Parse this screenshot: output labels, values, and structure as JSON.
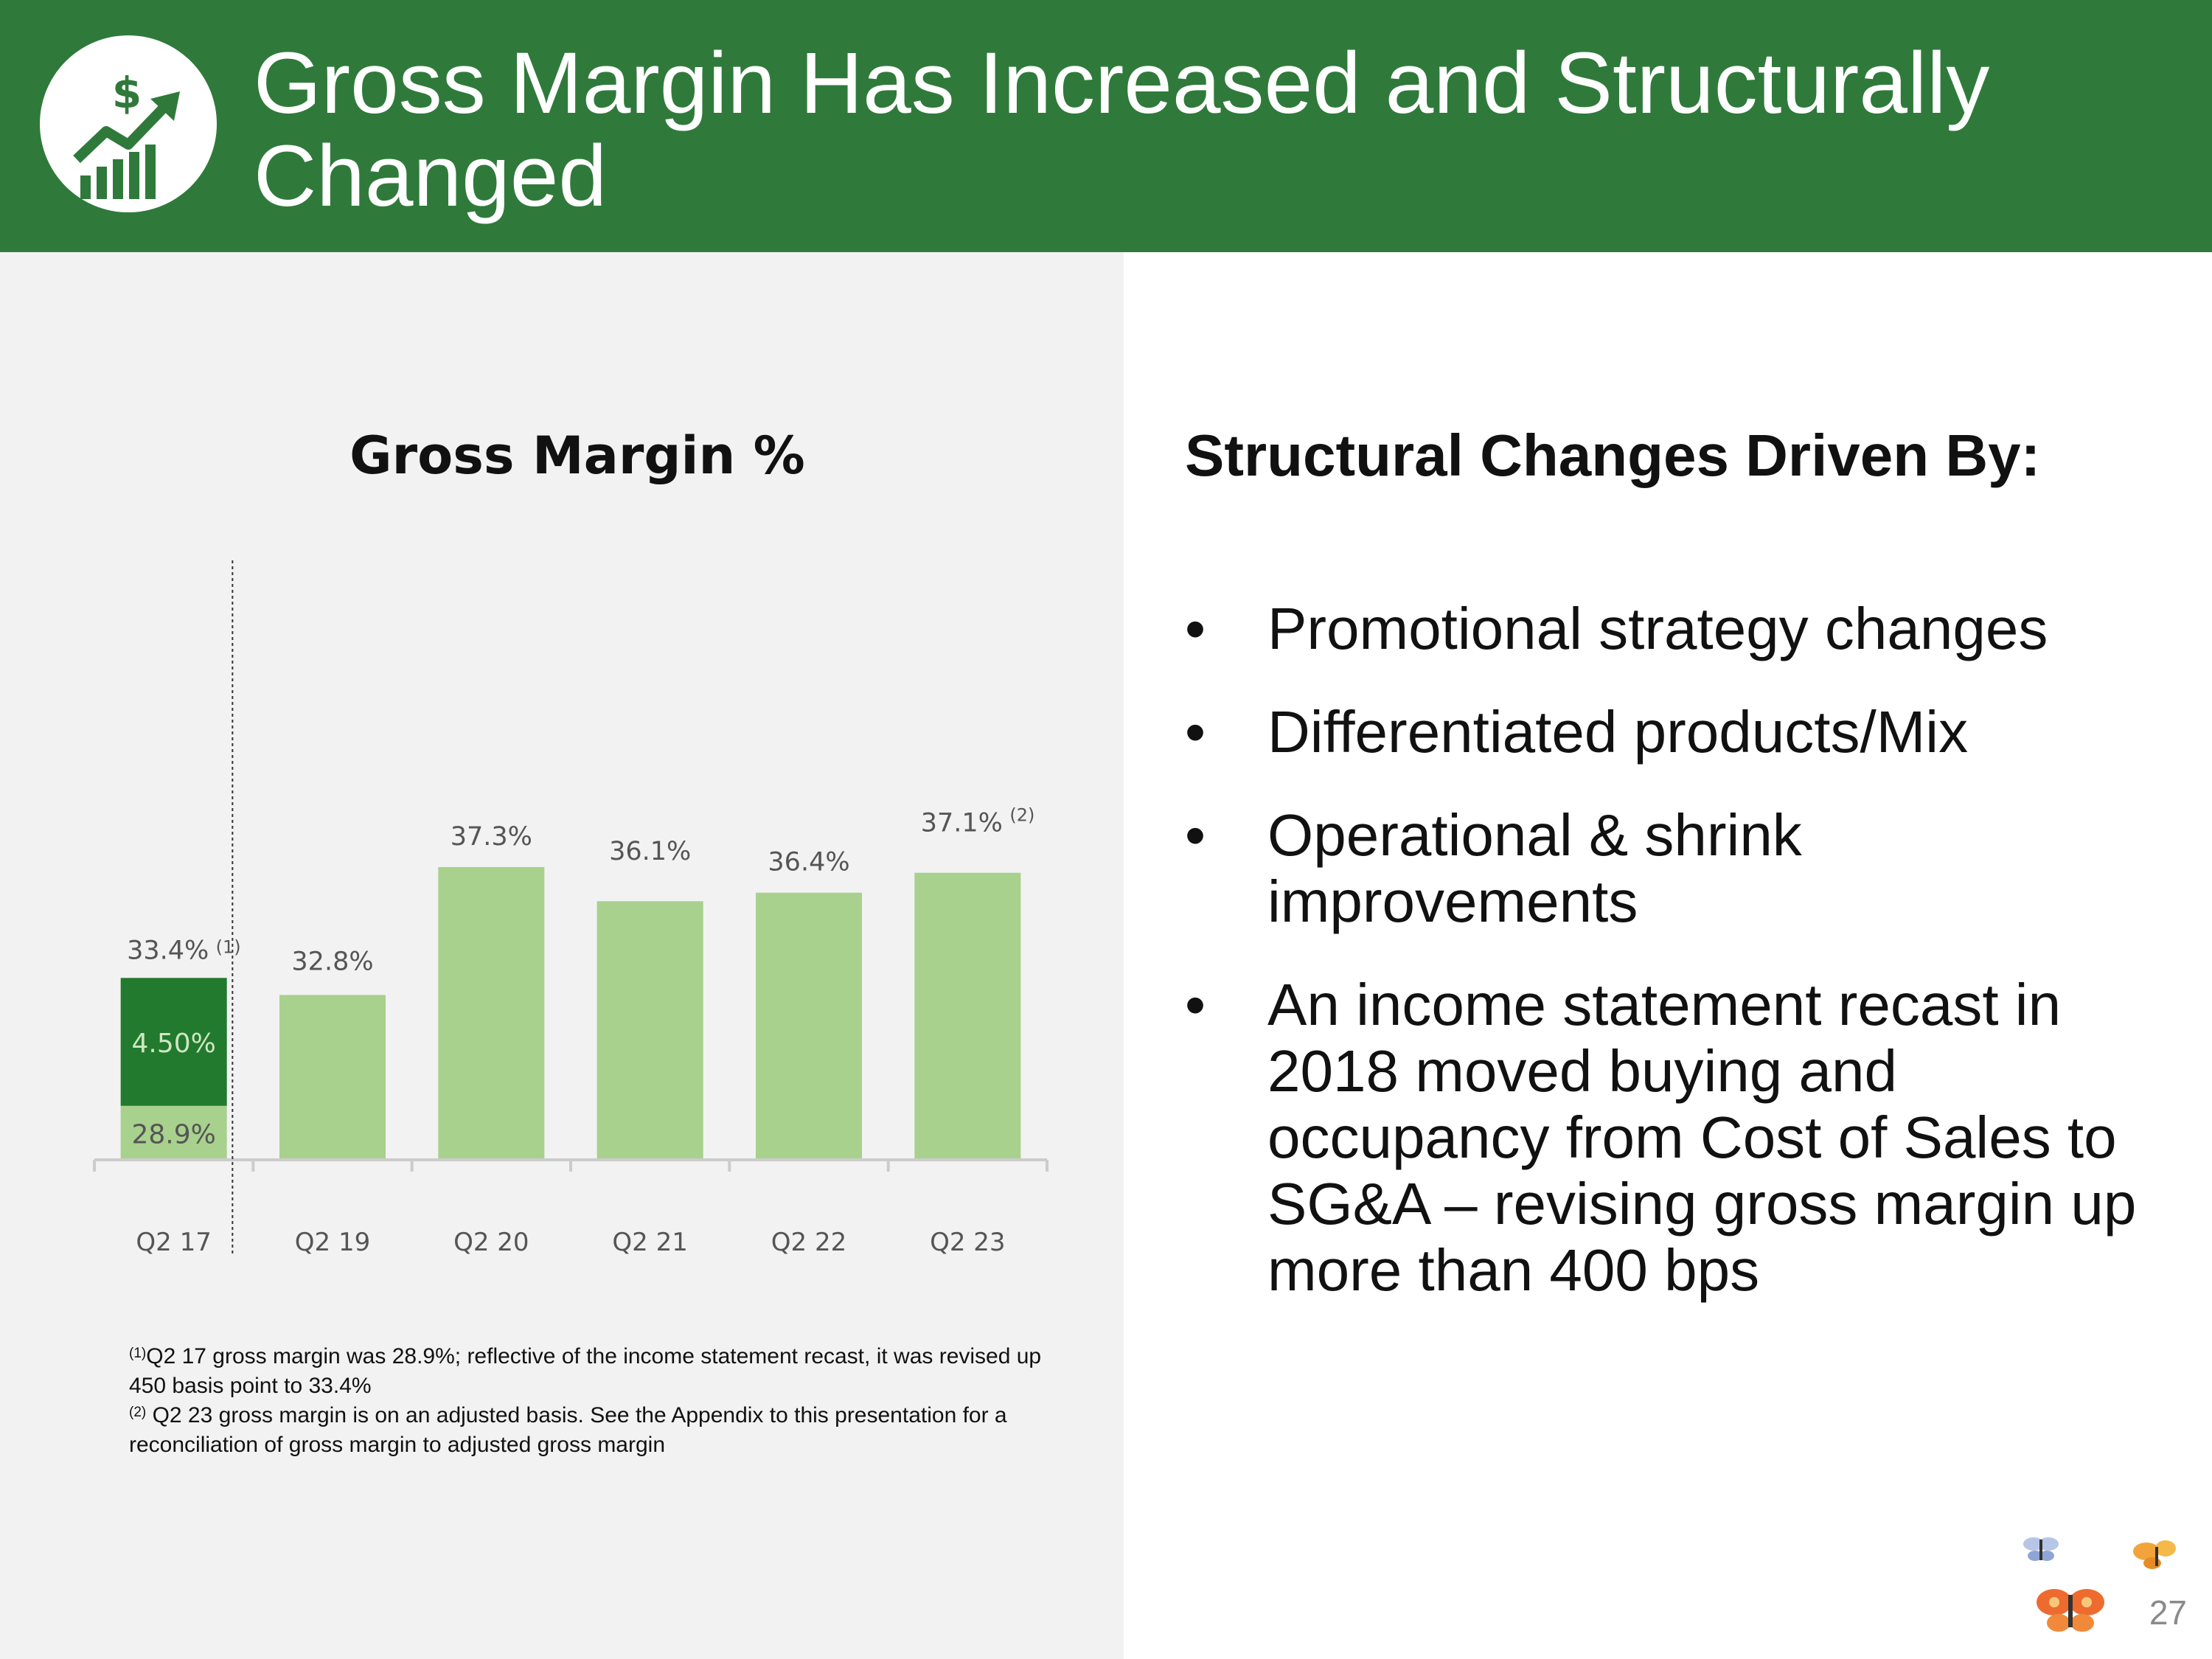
{
  "header": {
    "title": "Gross Margin Has Increased and Structurally Changed",
    "icon": "chart-dollar-icon",
    "background_color": "#2f7a3b"
  },
  "chart_data": {
    "type": "bar",
    "title": "Gross Margin %",
    "categories": [
      "Q2 17",
      "Q2 19",
      "Q2 20",
      "Q2 21",
      "Q2 22",
      "Q2 23"
    ],
    "values": [
      33.4,
      32.8,
      37.3,
      36.1,
      36.4,
      37.1
    ],
    "value_labels": [
      "33.4%",
      "32.8%",
      "37.3%",
      "36.1%",
      "36.4%",
      "37.1%"
    ],
    "label_footnotes": [
      "(1)",
      "",
      "",
      "",
      "",
      "(2)"
    ],
    "stacked_first_bar": {
      "base_value": 28.9,
      "base_label": "28.9%",
      "increment_value": 4.5,
      "increment_label": "4.50%"
    },
    "ylim": [
      27,
      38
    ],
    "xlabel": "",
    "ylabel": "",
    "grid": false,
    "colors": {
      "bar": "#a8d18d",
      "increment": "#217a2e",
      "axis": "#cccccc",
      "tick_text": "#555555"
    }
  },
  "footnotes": {
    "note1_marker": "(1)",
    "note1_text": "Q2 17 gross margin was 28.9%; reflective of the income statement recast, it was revised up 450 basis point to 33.4%",
    "note2_marker": "(2)",
    "note2_text": " Q2 23 gross margin is on an adjusted basis.  See the Appendix to this presentation for a reconciliation of gross margin to adjusted gross margin"
  },
  "right": {
    "heading": "Structural Changes Driven By:",
    "bullet_symbol": "•",
    "bullets": [
      "Promotional strategy changes",
      "Differentiated products/Mix",
      "Operational  & shrink improvements",
      "An income statement recast in 2018 moved buying and occupancy from Cost of Sales to SG&A – revising gross margin up more than 400 bps"
    ]
  },
  "page_number": "27"
}
